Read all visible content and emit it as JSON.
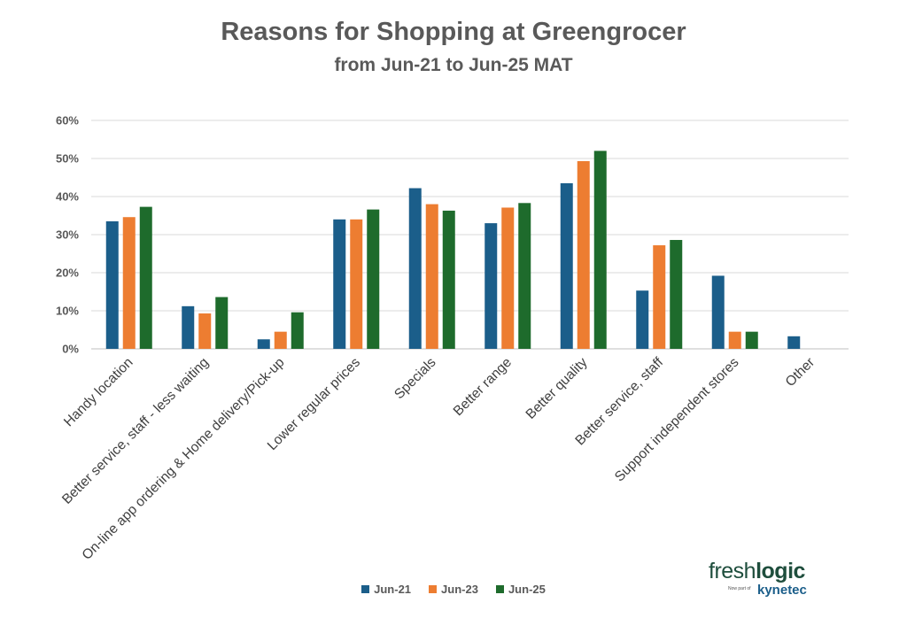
{
  "header": {
    "title": "Reasons for Shopping at Greengrocer",
    "subtitle": "from Jun-21 to Jun-25 MAT"
  },
  "logo": {
    "fresh": "fresh",
    "logic": "logic",
    "tagline": "Now part of",
    "company": "kynetec"
  },
  "chart_data": {
    "type": "bar",
    "categories": [
      "Handy location",
      "Better service, staff - less waiting",
      "On-line app ordering & Home delivery/Pick-up",
      "Lower regular prices",
      "Specials",
      "Better range",
      "Better quality",
      "Better service, staff",
      "Support independent stores",
      "Other"
    ],
    "series": [
      {
        "name": "Jun-21",
        "color": "#1b5e8a",
        "values": [
          33.5,
          11.2,
          2.5,
          34.0,
          42.2,
          33.0,
          43.5,
          15.3,
          19.2,
          3.3
        ]
      },
      {
        "name": "Jun-23",
        "color": "#ed7d31",
        "values": [
          34.6,
          9.3,
          4.5,
          34.0,
          38.0,
          37.1,
          49.3,
          27.2,
          4.5,
          0
        ]
      },
      {
        "name": "Jun-25",
        "color": "#1e6b2c",
        "values": [
          37.3,
          13.6,
          9.6,
          36.6,
          36.3,
          38.3,
          52.0,
          28.6,
          4.5,
          0
        ]
      }
    ],
    "ylim": [
      0,
      60
    ],
    "yticks": [
      "0%",
      "10%",
      "20%",
      "30%",
      "40%",
      "50%",
      "60%"
    ],
    "grid": true,
    "legend_position": "bottom",
    "xlabel": "",
    "ylabel": ""
  }
}
